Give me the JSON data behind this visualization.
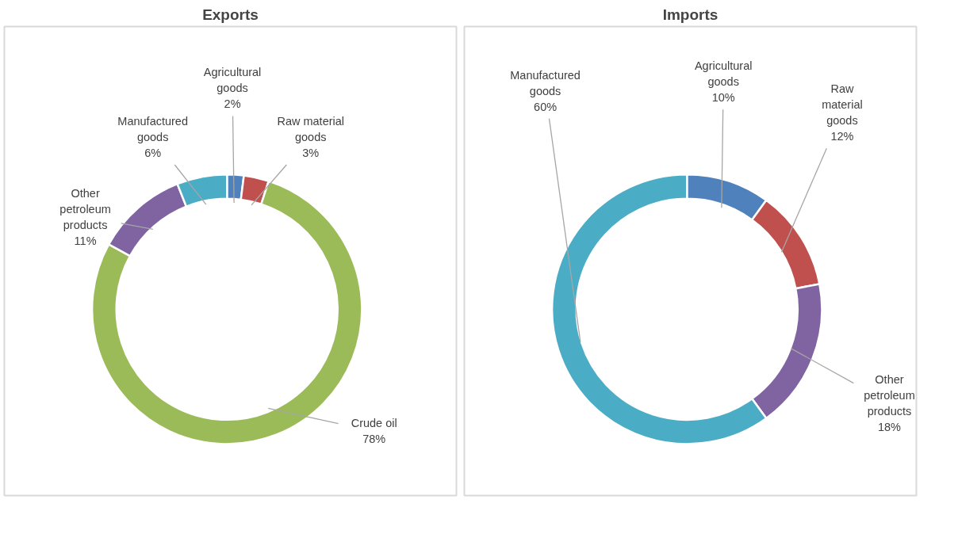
{
  "chart_data": [
    {
      "type": "donut",
      "title": "Exports",
      "categories": [
        "Agricultural goods",
        "Raw material goods",
        "Crude oil",
        "Other petroleum products",
        "Manufactured goods"
      ],
      "values": [
        2,
        3,
        78,
        11,
        6
      ],
      "value_labels": [
        "2%",
        "3%",
        "78%",
        "11%",
        "6%"
      ],
      "colors": [
        "#4f81bd",
        "#c0504d",
        "#9bbb59",
        "#8064a2",
        "#4bacc6"
      ],
      "legend": false
    },
    {
      "type": "donut",
      "title": "Imports",
      "categories": [
        "Agricultural goods",
        "Raw material goods",
        "Other petroleum products",
        "Manufactured goods"
      ],
      "values": [
        10,
        12,
        18,
        60
      ],
      "value_labels": [
        "10%",
        "12%",
        "18%",
        "60%"
      ],
      "colors": [
        "#4f81bd",
        "#c0504d",
        "#8064a2",
        "#4bacc6"
      ],
      "legend": false
    }
  ]
}
